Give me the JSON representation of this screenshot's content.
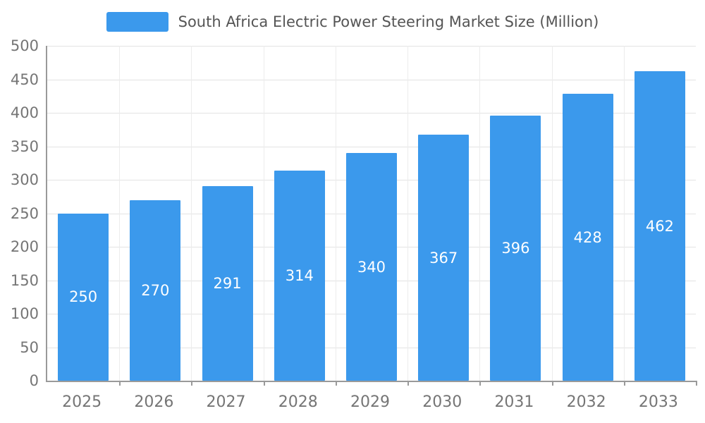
{
  "legend": {
    "label": "South Africa Electric Power Steering Market Size (Million)",
    "swatch_color": "#3b99ec"
  },
  "chart_data": {
    "type": "bar",
    "title": "South Africa Electric Power Steering Market Size (Million)",
    "categories": [
      "2025",
      "2026",
      "2027",
      "2028",
      "2029",
      "2030",
      "2031",
      "2032",
      "2033"
    ],
    "values": [
      250,
      270,
      291,
      314,
      340,
      367,
      396,
      428,
      462
    ],
    "xlabel": "",
    "ylabel": "",
    "ylim": [
      0,
      500
    ],
    "ytick_step": 50,
    "bar_color": "#3b99ec",
    "value_label_color": "#ffffff",
    "grid": true,
    "legend_position": "top"
  }
}
